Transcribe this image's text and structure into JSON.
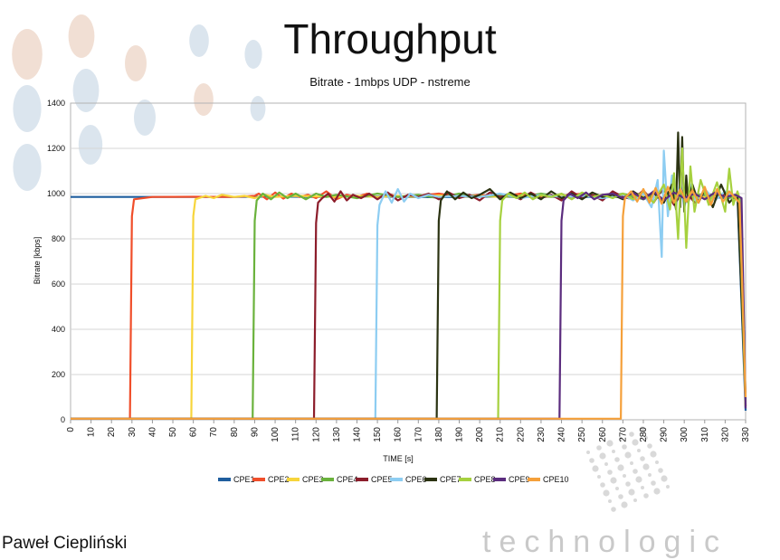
{
  "slide": {
    "title": "Throughput",
    "author": "Paweł Ciepliński",
    "brand": "technologic"
  },
  "colors": {
    "plot_border": "#b3b3b3",
    "grid": "#d6d6d6",
    "dots_warm": "#e8c9b8",
    "dots_cool": "#c3d3e3"
  },
  "chart_data": {
    "type": "line",
    "title": "Bitrate - 1mbps UDP - nstreme",
    "xlabel": "TIME [s]",
    "ylabel": "Bitrate [kbps]",
    "xlim": [
      0,
      330
    ],
    "ylim": [
      0,
      1400
    ],
    "xticks": [
      "0",
      "10",
      "20",
      "30",
      "40",
      "50",
      "60",
      "70",
      "80",
      "90",
      "100",
      "110",
      "120",
      "130",
      "140",
      "150",
      "160",
      "170",
      "180",
      "190",
      "200",
      "210",
      "220",
      "230",
      "240",
      "250",
      "260",
      "270",
      "280",
      "290",
      "300",
      "310",
      "320",
      "330"
    ],
    "yticks": [
      "0",
      "200",
      "400",
      "600",
      "800",
      "1000",
      "1200",
      "1400"
    ],
    "grid": "horizontal",
    "legend_position": "bottom",
    "series": [
      {
        "name": "CPE1",
        "color": "#1f5e9e",
        "start": 0,
        "x": [
          0,
          20,
          40,
          60,
          80,
          100,
          120,
          140,
          160,
          180,
          200,
          220,
          240,
          260,
          270,
          280,
          285,
          290,
          300,
          310,
          320,
          326,
          330
        ],
        "y": [
          985,
          985,
          985,
          985,
          985,
          987,
          985,
          988,
          986,
          984,
          987,
          985,
          986,
          984,
          985,
          980,
          990,
          970,
          985,
          990,
          980,
          985,
          40
        ]
      },
      {
        "name": "CPE2",
        "color": "#f04e2a",
        "start": 30,
        "x": [
          0,
          29,
          30,
          31,
          40,
          60,
          80,
          90,
          92,
          96,
          100,
          104,
          108,
          112,
          116,
          120,
          125,
          130,
          135,
          140,
          145,
          150,
          155,
          160,
          170,
          180,
          190,
          200,
          210,
          220,
          230,
          240,
          250,
          260,
          270,
          280,
          290,
          300,
          310,
          320,
          327,
          330
        ],
        "y": [
          5,
          5,
          900,
          975,
          985,
          986,
          985,
          990,
          1000,
          975,
          1005,
          978,
          1000,
          985,
          995,
          980,
          1010,
          975,
          995,
          985,
          1000,
          980,
          1000,
          985,
          990,
          1000,
          985,
          995,
          985,
          1000,
          985,
          990,
          1000,
          985,
          990,
          1000,
          975,
          1010,
          980,
          995,
          980,
          60
        ]
      },
      {
        "name": "CPE3",
        "color": "#f7d53b",
        "start": 60,
        "x": [
          0,
          59,
          60,
          61,
          66,
          70,
          74,
          80,
          85,
          90,
          95,
          100,
          110,
          120,
          130,
          140,
          150,
          160,
          170,
          180,
          190,
          200,
          210,
          220,
          230,
          240,
          250,
          260,
          270,
          280,
          290,
          300,
          310,
          320,
          327,
          330
        ],
        "y": [
          5,
          5,
          900,
          975,
          990,
          980,
          995,
          985,
          990,
          980,
          995,
          985,
          990,
          988,
          985,
          990,
          985,
          990,
          985,
          992,
          985,
          990,
          985,
          990,
          985,
          990,
          985,
          990,
          985,
          990,
          980,
          995,
          985,
          990,
          980,
          60
        ]
      },
      {
        "name": "CPE4",
        "color": "#6ab23c",
        "start": 90,
        "x": [
          0,
          89,
          90,
          91,
          94,
          98,
          102,
          106,
          110,
          115,
          120,
          125,
          130,
          140,
          150,
          160,
          170,
          180,
          190,
          200,
          210,
          220,
          230,
          240,
          250,
          260,
          270,
          280,
          290,
          300,
          310,
          320,
          327,
          330
        ],
        "y": [
          5,
          5,
          880,
          970,
          1000,
          975,
          1005,
          980,
          1000,
          975,
          1000,
          985,
          995,
          980,
          1000,
          985,
          995,
          980,
          1000,
          985,
          995,
          980,
          1000,
          985,
          995,
          980,
          1000,
          975,
          1010,
          980,
          1000,
          985,
          980,
          80
        ]
      },
      {
        "name": "CPE5",
        "color": "#8c1d2b",
        "start": 120,
        "x": [
          0,
          119,
          120,
          121,
          123,
          126,
          129,
          132,
          135,
          138,
          142,
          146,
          150,
          155,
          160,
          165,
          170,
          175,
          180,
          185,
          190,
          195,
          200,
          205,
          210,
          215,
          220,
          225,
          230,
          235,
          240,
          245,
          250,
          255,
          260,
          265,
          270,
          275,
          280,
          285,
          290,
          295,
          300,
          305,
          310,
          315,
          320,
          324,
          327,
          330
        ],
        "y": [
          5,
          5,
          870,
          960,
          980,
          1000,
          965,
          1010,
          970,
          995,
          980,
          1000,
          975,
          1005,
          970,
          995,
          985,
          1000,
          975,
          1005,
          980,
          995,
          970,
          1005,
          985,
          995,
          975,
          1005,
          980,
          995,
          970,
          1010,
          980,
          995,
          970,
          1010,
          985,
          975,
          1015,
          960,
          1030,
          950,
          1020,
          960,
          1010,
          975,
          1000,
          985,
          980,
          70
        ]
      },
      {
        "name": "CPE6",
        "color": "#8dcdf2",
        "start": 150,
        "x": [
          0,
          149,
          150,
          151,
          154,
          157,
          160,
          163,
          166,
          170,
          175,
          180,
          190,
          200,
          210,
          220,
          230,
          240,
          250,
          260,
          270,
          275,
          280,
          284,
          287,
          289,
          290,
          292,
          294,
          296,
          298,
          300,
          303,
          306,
          310,
          315,
          320,
          324,
          327,
          330
        ],
        "y": [
          5,
          5,
          860,
          950,
          1010,
          960,
          1020,
          965,
          1000,
          980,
          995,
          985,
          990,
          985,
          1000,
          980,
          995,
          985,
          990,
          980,
          995,
          970,
          1000,
          940,
          1060,
          720,
          1190,
          900,
          1080,
          960,
          1050,
          940,
          1040,
          960,
          1020,
          970,
          1010,
          985,
          980,
          120
        ]
      },
      {
        "name": "CPE7",
        "color": "#2b3312",
        "start": 180,
        "x": [
          0,
          179,
          180,
          181,
          184,
          188,
          192,
          196,
          200,
          205,
          210,
          215,
          220,
          225,
          230,
          235,
          240,
          245,
          250,
          255,
          260,
          265,
          270,
          275,
          280,
          285,
          290,
          294,
          296,
          297,
          298,
          299,
          300,
          301,
          302,
          304,
          307,
          310,
          314,
          318,
          322,
          326,
          330
        ],
        "y": [
          5,
          5,
          880,
          970,
          1010,
          975,
          1005,
          980,
          995,
          1020,
          975,
          1005,
          980,
          1000,
          975,
          1010,
          980,
          1000,
          975,
          1005,
          985,
          995,
          975,
          1010,
          980,
          1005,
          960,
          1040,
          930,
          1270,
          940,
          1250,
          920,
          1080,
          960,
          1040,
          960,
          1020,
          940,
          1040,
          960,
          1000,
          90
        ]
      },
      {
        "name": "CPE8",
        "color": "#a6d13f",
        "start": 210,
        "x": [
          0,
          209,
          210,
          211,
          214,
          218,
          222,
          226,
          230,
          235,
          240,
          245,
          250,
          255,
          260,
          265,
          270,
          275,
          280,
          285,
          290,
          293,
          295,
          297,
          299,
          301,
          303,
          305,
          308,
          312,
          316,
          320,
          322,
          324,
          326,
          327,
          330
        ],
        "y": [
          5,
          5,
          880,
          970,
          1000,
          980,
          1005,
          975,
          995,
          985,
          1000,
          975,
          1005,
          985,
          995,
          980,
          1000,
          975,
          1010,
          960,
          1040,
          930,
          1090,
          800,
          1200,
          760,
          1120,
          920,
          1060,
          950,
          1050,
          920,
          1110,
          950,
          1010,
          980,
          60
        ]
      },
      {
        "name": "CPE9",
        "color": "#5b2c7e",
        "start": 240,
        "x": [
          0,
          239,
          240,
          241,
          244,
          248,
          252,
          256,
          260,
          265,
          270,
          275,
          280,
          285,
          290,
          295,
          300,
          305,
          310,
          315,
          320,
          325,
          328,
          330
        ],
        "y": [
          5,
          5,
          880,
          970,
          1000,
          980,
          1005,
          975,
          995,
          1000,
          980,
          1005,
          975,
          1010,
          970,
          1005,
          980,
          1000,
          975,
          1005,
          985,
          995,
          980,
          50
        ]
      },
      {
        "name": "CPE10",
        "color": "#f5a03a",
        "start": 270,
        "x": [
          0,
          269,
          270,
          271,
          274,
          277,
          280,
          283,
          286,
          289,
          292,
          295,
          298,
          301,
          304,
          307,
          310,
          313,
          316,
          319,
          322,
          325,
          327,
          328,
          330
        ],
        "y": [
          5,
          5,
          900,
          980,
          1010,
          965,
          1020,
          960,
          1025,
          955,
          1030,
          960,
          1020,
          965,
          1015,
          960,
          1030,
          950,
          1020,
          965,
          1010,
          980,
          960,
          700,
          100
        ]
      }
    ]
  }
}
